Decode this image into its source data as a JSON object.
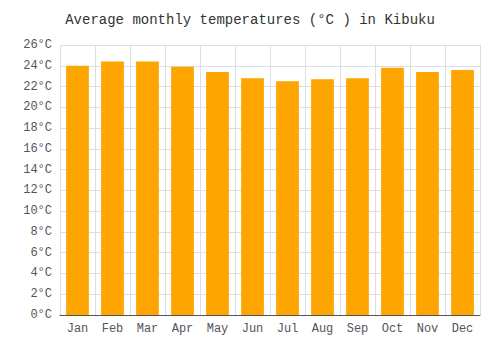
{
  "chart_data": {
    "type": "bar",
    "title": "Average monthly temperatures (°C ) in Kibuku",
    "categories": [
      "Jan",
      "Feb",
      "Mar",
      "Apr",
      "May",
      "Jun",
      "Jul",
      "Aug",
      "Sep",
      "Oct",
      "Nov",
      "Dec"
    ],
    "values": [
      24.0,
      24.4,
      24.4,
      23.9,
      23.4,
      22.8,
      22.5,
      22.7,
      22.8,
      23.8,
      23.4,
      23.6
    ],
    "color": "#FFA500",
    "ylim": [
      0,
      26
    ],
    "yticks": [
      {
        "value": 0,
        "label": "0°C"
      },
      {
        "value": 2,
        "label": "2°C"
      },
      {
        "value": 4,
        "label": "4°C"
      },
      {
        "value": 6,
        "label": "6°C"
      },
      {
        "value": 8,
        "label": "8°C"
      },
      {
        "value": 10,
        "label": "10°C"
      },
      {
        "value": 12,
        "label": "12°C"
      },
      {
        "value": 14,
        "label": "14°C"
      },
      {
        "value": 16,
        "label": "16°C"
      },
      {
        "value": 18,
        "label": "18°C"
      },
      {
        "value": 20,
        "label": "20°C"
      },
      {
        "value": 22,
        "label": "22°C"
      },
      {
        "value": 24,
        "label": "24°C"
      },
      {
        "value": 26,
        "label": "26°C"
      }
    ],
    "grid": true
  }
}
